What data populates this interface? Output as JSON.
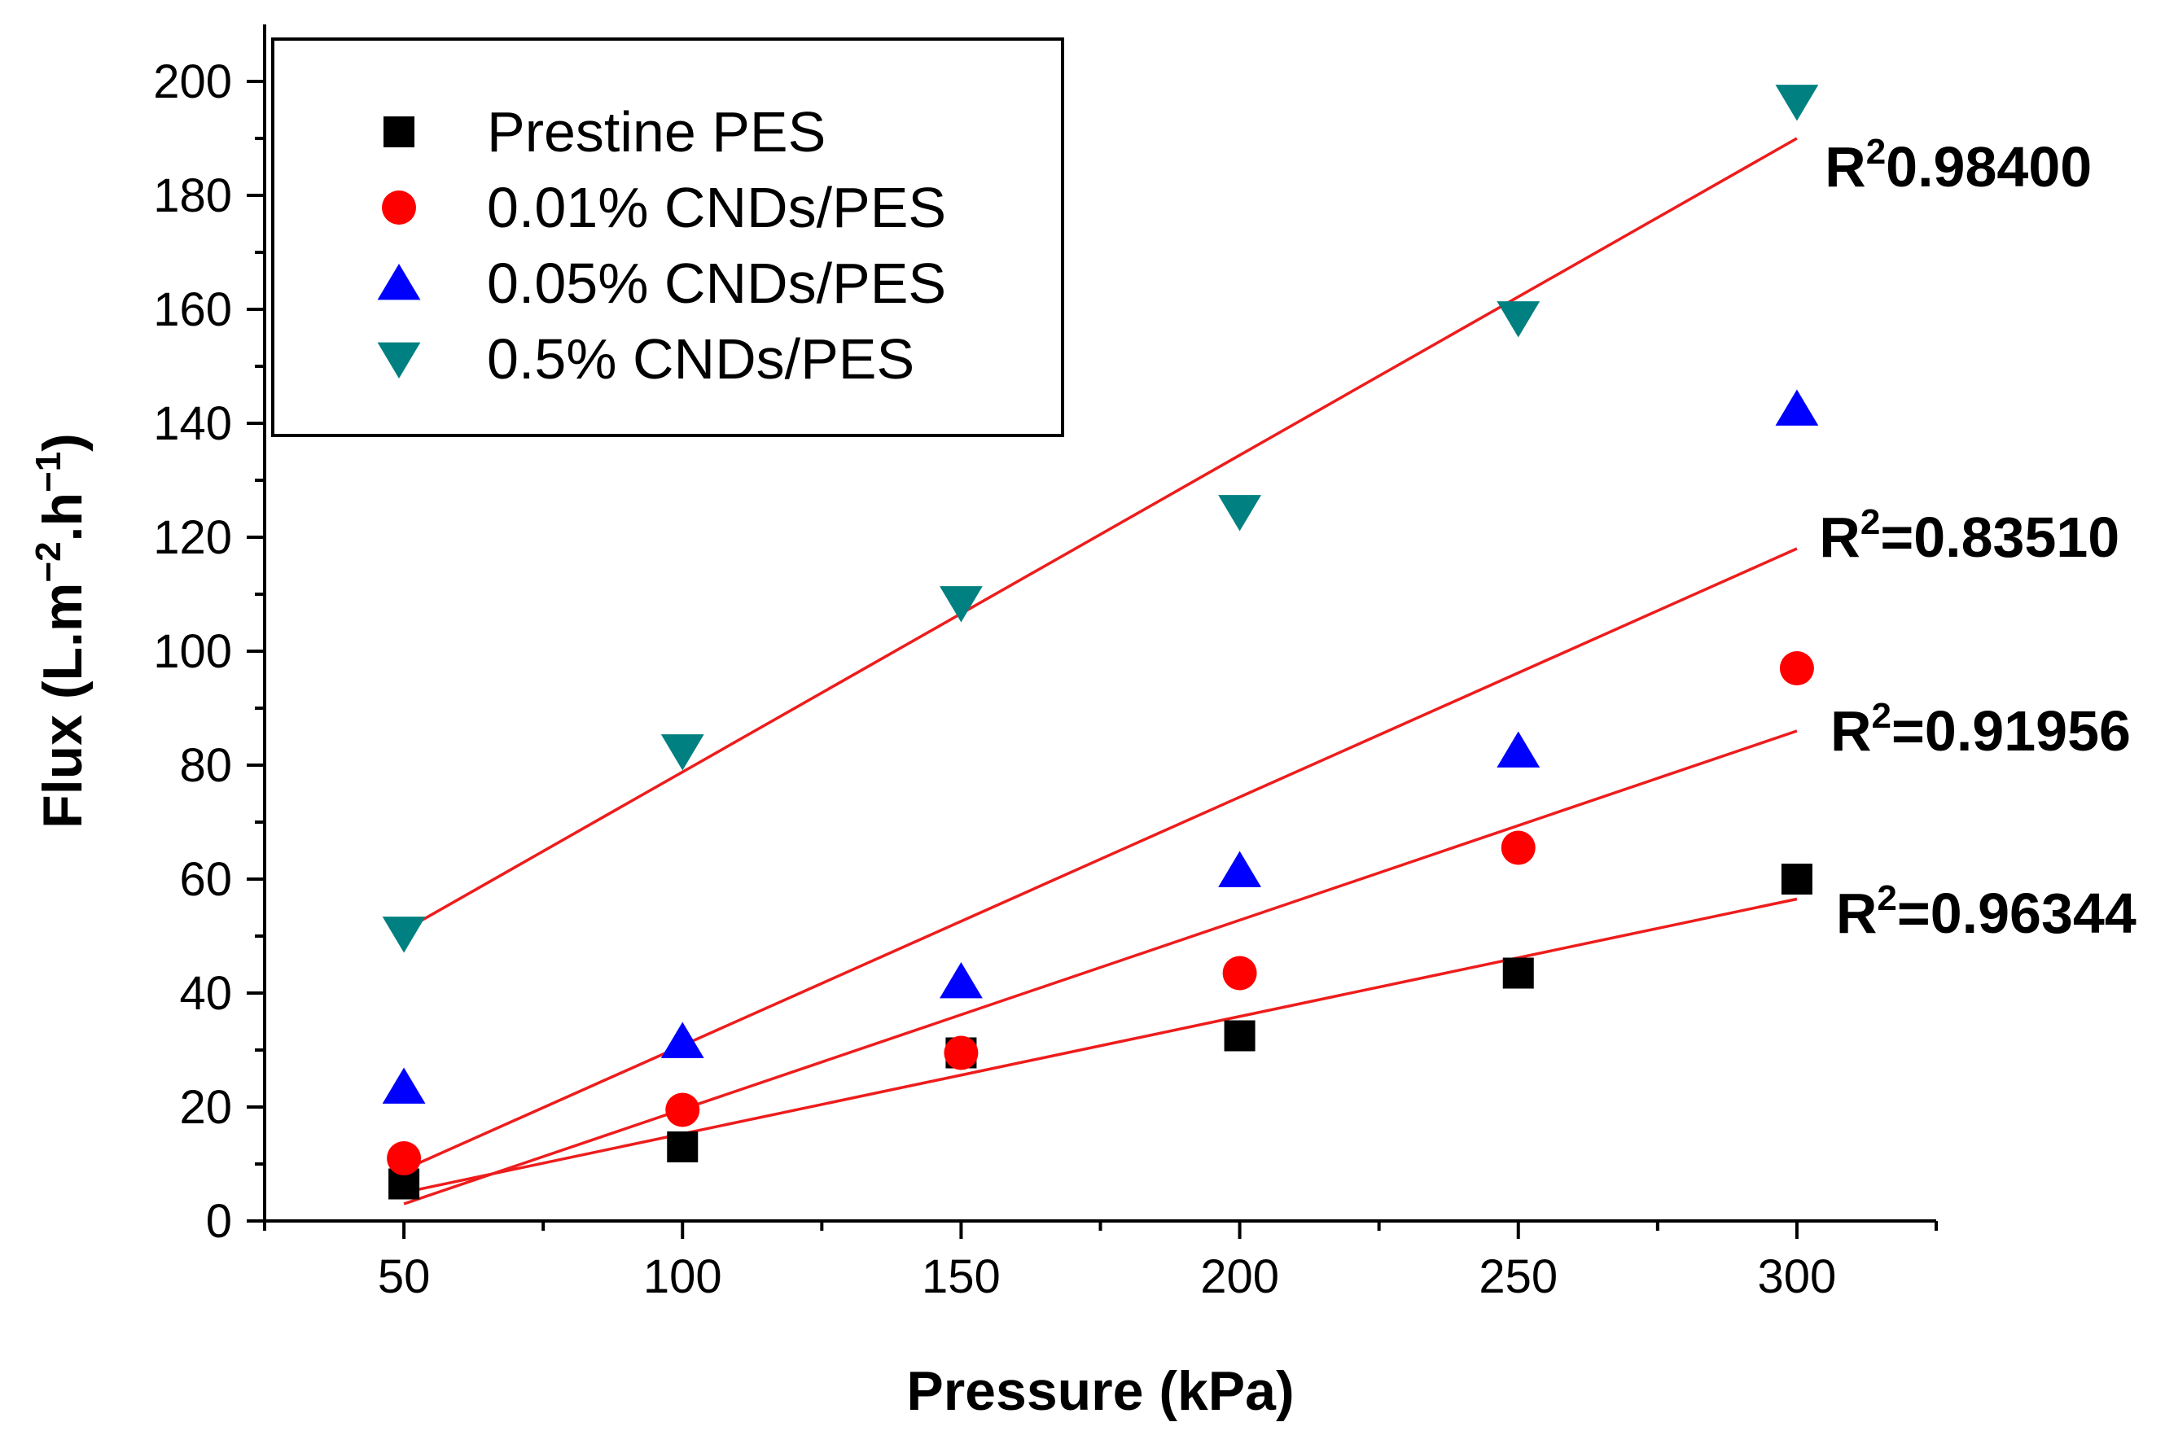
{
  "chart_data": {
    "type": "scatter",
    "title": "",
    "xlabel": "Pressure (kPa)",
    "ylabel": {
      "text": "Flux (L.m",
      "sup1": "−2",
      "mid": ".h",
      "sup2": "−1",
      "end": ")"
    },
    "xlim": [
      25,
      325
    ],
    "ylim": [
      0,
      210
    ],
    "xticks": [
      50,
      100,
      150,
      200,
      250,
      300
    ],
    "yticks": [
      0,
      20,
      40,
      60,
      80,
      100,
      120,
      140,
      160,
      180,
      200
    ],
    "legend_position": "top-left",
    "colors": {
      "fit_line": "#ee1c1c",
      "axis": "#000000"
    },
    "series": [
      {
        "name": "Prestine PES",
        "marker": "square",
        "color": "#000000",
        "x": [
          50,
          100,
          150,
          200,
          250,
          300
        ],
        "y": [
          6.5,
          13,
          29.5,
          32.5,
          43.5,
          60
        ],
        "fit": {
          "x": [
            50,
            300
          ],
          "y": [
            5,
            56.5
          ]
        },
        "r2": {
          "prefix": "R",
          "sup": "2",
          "value": "=0.96344",
          "anchor": [
            307,
            54
          ]
        }
      },
      {
        "name": "0.01% CNDs/PES",
        "marker": "circle",
        "color": "#ff0000",
        "x": [
          50,
          100,
          150,
          200,
          250,
          300
        ],
        "y": [
          11,
          19.5,
          29.5,
          43.5,
          65.5,
          97
        ],
        "fit": {
          "x": [
            50,
            300
          ],
          "y": [
            3,
            86
          ]
        },
        "r2": {
          "prefix": "R",
          "sup": "2",
          "value": "=0.91956",
          "anchor": [
            306,
            86
          ]
        }
      },
      {
        "name": "0.05% CNDs/PES",
        "marker": "triangle-up",
        "color": "#0000ff",
        "x": [
          50,
          100,
          150,
          200,
          250,
          300
        ],
        "y": [
          23.5,
          31.5,
          42,
          61.5,
          82.5,
          142.5
        ],
        "fit": {
          "x": [
            50,
            300
          ],
          "y": [
            9,
            118
          ]
        },
        "r2": {
          "prefix": "R",
          "sup": "2",
          "value": "=0.83510",
          "anchor": [
            304,
            120
          ]
        }
      },
      {
        "name": "0.5% CNDs/PES",
        "marker": "triangle-down",
        "color": "#008080",
        "x": [
          50,
          100,
          150,
          200,
          250,
          300
        ],
        "y": [
          50.5,
          82.5,
          108.5,
          124.5,
          158.5,
          196.5
        ],
        "fit": {
          "x": [
            50,
            300
          ],
          "y": [
            51,
            190
          ]
        },
        "r2": {
          "prefix": "R",
          "sup": "2",
          "value": "0.98400",
          "anchor": [
            305,
            185
          ]
        }
      }
    ]
  }
}
